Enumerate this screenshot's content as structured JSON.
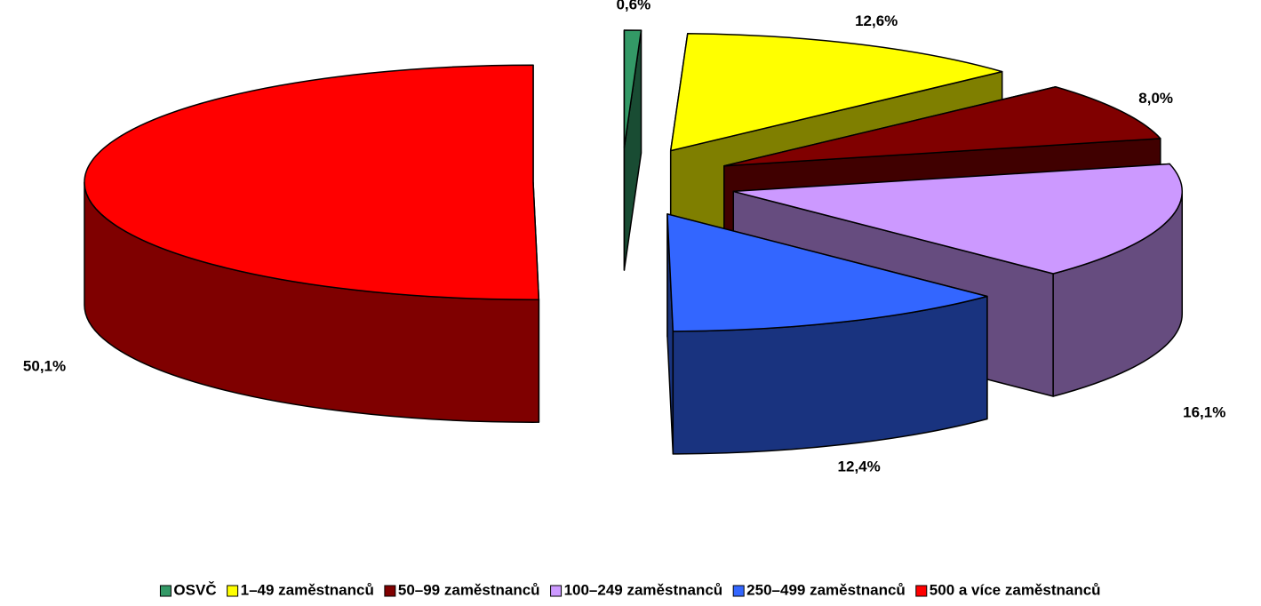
{
  "chart_data": {
    "type": "pie3d",
    "categories": [
      "OSVČ",
      "1–49 zaměstnanců",
      "50–99 zaměstnanců",
      "100–249 zaměstnanců",
      "250–499 zaměstnanců",
      "500 a více zaměstnanců"
    ],
    "values": [
      0.6,
      12.6,
      8.0,
      16.1,
      12.4,
      50.1
    ],
    "value_labels": [
      "0,6%",
      "12,6%",
      "8,0%",
      "16,1%",
      "12,4%",
      "50,1%"
    ],
    "colors": [
      "#339966",
      "#ffff00",
      "#800000",
      "#cc99ff",
      "#3366ff",
      "#ff0000"
    ],
    "legend": "bottom"
  }
}
